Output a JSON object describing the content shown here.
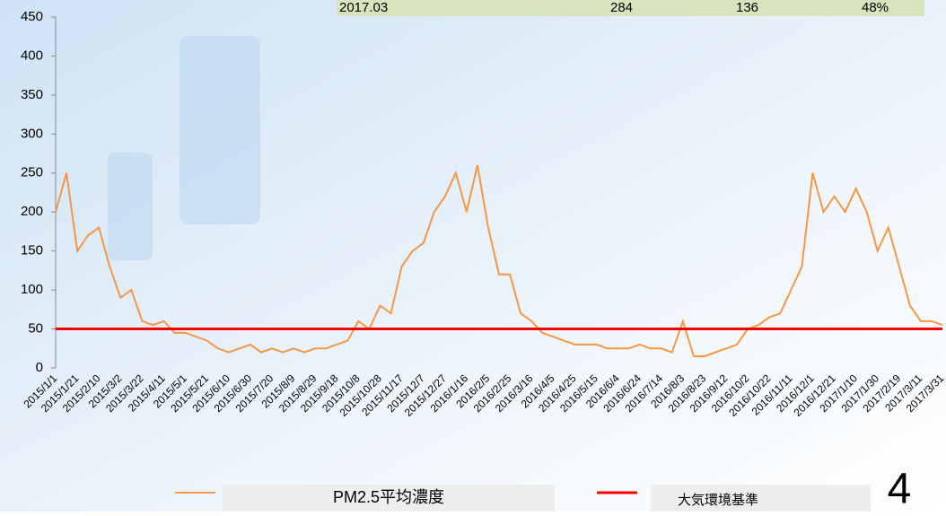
{
  "banner": {
    "cells": [
      "2017.03",
      "284",
      "136",
      "48%"
    ]
  },
  "page_number": "4",
  "chart_data": {
    "type": "line",
    "categories": [
      "2015/1/1",
      null,
      "2015/1/21",
      null,
      "2015/2/10",
      null,
      "2015/3/2",
      null,
      "2015/3/22",
      null,
      "2015/4/11",
      null,
      "2015/5/1",
      null,
      "2015/5/21",
      null,
      "2015/6/10",
      null,
      "2015/6/30",
      null,
      "2015/7/20",
      null,
      "2015/8/9",
      null,
      "2015/8/29",
      null,
      "2015/9/18",
      null,
      "2015/10/8",
      null,
      "2015/10/28",
      null,
      "2015/11/17",
      null,
      "2015/12/7",
      null,
      "2015/12/27",
      null,
      "2016/1/16",
      null,
      "2016/2/5",
      null,
      "2016/2/25",
      null,
      "2016/3/16",
      null,
      "2016/4/5",
      null,
      "2016/4/25",
      null,
      "2016/5/15",
      null,
      "2016/6/4",
      null,
      "2016/6/24",
      null,
      "2016/7/14",
      null,
      "2016/8/3",
      null,
      "2016/8/23",
      null,
      "2016/9/12",
      null,
      "2016/10/2",
      null,
      "2016/10/22",
      null,
      "2016/11/11",
      null,
      "2016/12/1",
      null,
      "2016/12/21",
      null,
      "2017/1/10",
      null,
      "2017/1/30",
      null,
      "2017/2/19",
      null,
      "2017/3/11",
      null,
      "2017/3/31"
    ],
    "series": [
      {
        "name": "PM2.5平均濃度",
        "color": "#f79646",
        "values": [
          200,
          250,
          150,
          170,
          180,
          130,
          90,
          100,
          60,
          55,
          60,
          45,
          45,
          40,
          35,
          25,
          20,
          25,
          30,
          20,
          25,
          20,
          25,
          20,
          25,
          25,
          30,
          35,
          60,
          50,
          80,
          70,
          130,
          150,
          160,
          200,
          220,
          250,
          200,
          260,
          180,
          120,
          120,
          70,
          60,
          45,
          40,
          35,
          30,
          30,
          30,
          25,
          25,
          25,
          30,
          25,
          25,
          20,
          60,
          15,
          15,
          20,
          25,
          30,
          50,
          55,
          65,
          70,
          100,
          130,
          250,
          200,
          220,
          200,
          230,
          200,
          150,
          180,
          130,
          80,
          60,
          60,
          55
        ]
      }
    ],
    "reference_line": {
      "name": "大気環境基準",
      "color": "#ff0000",
      "value": 50
    },
    "ylim": [
      0,
      450
    ],
    "yticks": [
      0,
      50,
      100,
      150,
      200,
      250,
      300,
      350,
      400,
      450
    ]
  }
}
